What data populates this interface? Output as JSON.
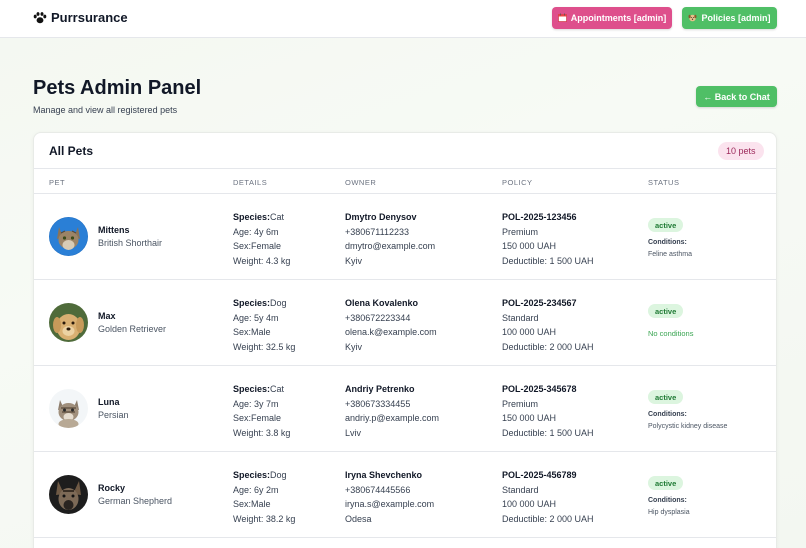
{
  "header": {
    "brand": "Purrsurance",
    "appointments_label": "Appointments [admin]",
    "policies_label": "Policies [admin]"
  },
  "page": {
    "title": "Pets Admin Panel",
    "subtitle": "Manage and view all registered pets",
    "back_label": "← Back to Chat"
  },
  "card": {
    "title": "All Pets",
    "count": "10 pets"
  },
  "columns": [
    "PET",
    "DETAILS",
    "OWNER",
    "POLICY",
    "STATUS"
  ],
  "pets": [
    {
      "name": "Mittens",
      "breed": "British Shorthair",
      "species_label": "Species:",
      "species": "Cat",
      "age": "Age: 4y 6m",
      "sex_label": "Sex:",
      "sex": "Female",
      "weight": "Weight: 4.3 kg",
      "owner_name": "Dmytro Denysov",
      "phone": "+380671112233",
      "email": "dmytro@example.com",
      "city": "Kyiv",
      "policy_id": "POL-2025-123456",
      "plan": "Premium",
      "coverage": "150 000 UAH",
      "deductible": "Deductible: 1 500 UAH",
      "status": "active",
      "conditions_label": "Conditions:",
      "conditions": "Feline asthma"
    },
    {
      "name": "Max",
      "breed": "Golden Retriever",
      "species_label": "Species:",
      "species": "Dog",
      "age": "Age: 5y 4m",
      "sex_label": "Sex:",
      "sex": "Male",
      "weight": "Weight: 32.5 kg",
      "owner_name": "Olena Kovalenko",
      "phone": "+380672223344",
      "email": "olena.k@example.com",
      "city": "Kyiv",
      "policy_id": "POL-2025-234567",
      "plan": "Standard",
      "coverage": "100 000 UAH",
      "deductible": "Deductible: 2 000 UAH",
      "status": "active",
      "no_conditions": "No conditions"
    },
    {
      "name": "Luna",
      "breed": "Persian",
      "species_label": "Species:",
      "species": "Cat",
      "age": "Age: 3y 7m",
      "sex_label": "Sex:",
      "sex": "Female",
      "weight": "Weight: 3.8 kg",
      "owner_name": "Andriy Petrenko",
      "phone": "+380673334455",
      "email": "andriy.p@example.com",
      "city": "Lviv",
      "policy_id": "POL-2025-345678",
      "plan": "Premium",
      "coverage": "150 000 UAH",
      "deductible": "Deductible: 1 500 UAH",
      "status": "active",
      "conditions_label": "Conditions:",
      "conditions": "Polycystic kidney disease"
    },
    {
      "name": "Rocky",
      "breed": "German Shepherd",
      "species_label": "Species:",
      "species": "Dog",
      "age": "Age: 6y 2m",
      "sex_label": "Sex:",
      "sex": "Male",
      "weight": "Weight: 38.2 kg",
      "owner_name": "Iryna Shevchenko",
      "phone": "+380674445566",
      "email": "iryna.s@example.com",
      "city": "Odesa",
      "policy_id": "POL-2025-456789",
      "plan": "Standard",
      "coverage": "100 000 UAH",
      "deductible": "Deductible: 2 000 UAH",
      "status": "active",
      "conditions_label": "Conditions:",
      "conditions": "Hip dysplasia"
    }
  ],
  "icons": {
    "brand": "paw-icon",
    "appointments": "calendar-icon",
    "policies": "dog-icon"
  },
  "colors": {
    "appointments_button": "#de4f8c",
    "green_button": "#4fbf66",
    "status_active_bg": "#dcf5df",
    "count_badge_bg": "#fbe3ee"
  }
}
